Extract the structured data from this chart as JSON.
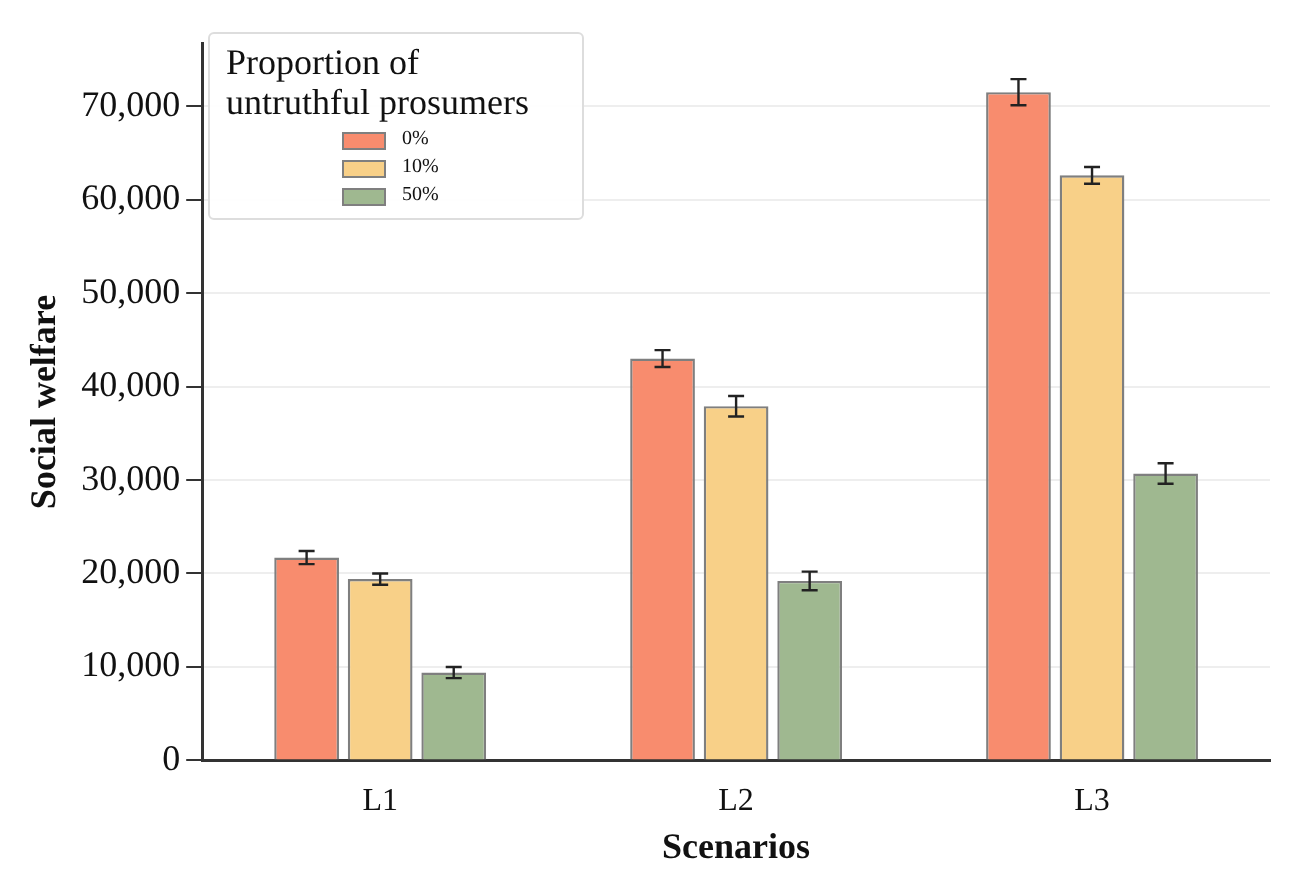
{
  "chart_data": {
    "type": "bar",
    "xlabel": "Scenarios",
    "ylabel": "Social welfare",
    "legend_title": "Proportion of untruthful prosumers",
    "categories": [
      "L1",
      "L2",
      "L3"
    ],
    "series": [
      {
        "name": "0%",
        "color": "#f88c6e",
        "values": [
          21700,
          43000,
          71500
        ],
        "errors": [
          700,
          900,
          1400
        ]
      },
      {
        "name": "10%",
        "color": "#f8d088",
        "values": [
          19400,
          37900,
          62600
        ],
        "errors": [
          600,
          1100,
          900
        ]
      },
      {
        "name": "50%",
        "color": "#9fb890",
        "values": [
          9400,
          19200,
          30700
        ],
        "errors": [
          600,
          1000,
          1100
        ]
      }
    ],
    "ylim": [
      0,
      76700
    ],
    "yticks": [
      0,
      {
        "value": 10000,
        "label": "10,000"
      },
      {
        "value": 20000,
        "label": "20,000"
      },
      {
        "value": 30000,
        "label": "30,000"
      },
      {
        "value": 40000,
        "label": "40,000"
      },
      {
        "value": 50000,
        "label": "50,000"
      },
      {
        "value": 60000,
        "label": "60,000"
      },
      {
        "value": 70000,
        "label": "70,000"
      }
    ],
    "grid": "y",
    "legend": "top left"
  }
}
